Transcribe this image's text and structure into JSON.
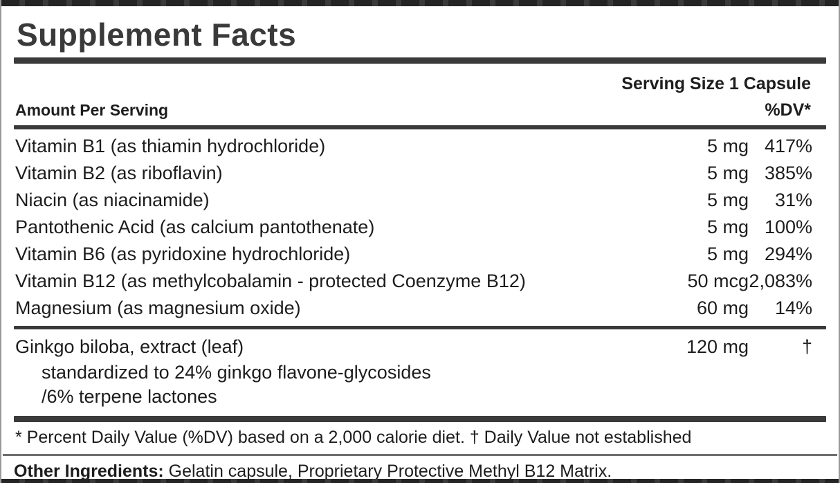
{
  "label": {
    "title": "Supplement Facts",
    "serving_size": "Serving Size 1 Capsule",
    "amount_header": "Amount Per Serving",
    "dv_header": "%DV*",
    "rows": [
      {
        "name": "Vitamin B1 (as thiamin hydrochloride)",
        "amount": "5 mg",
        "dv": "417%"
      },
      {
        "name": "Vitamin B2 (as riboflavin)",
        "amount": "5 mg",
        "dv": "385%"
      },
      {
        "name": "Niacin (as niacinamide)",
        "amount": "5 mg",
        "dv": "31%"
      },
      {
        "name": "Pantothenic Acid (as calcium pantothenate)",
        "amount": "5 mg",
        "dv": "100%"
      },
      {
        "name": "Vitamin B6 (as pyridoxine hydrochloride)",
        "amount": "5 mg",
        "dv": "294%"
      },
      {
        "name": "Vitamin B12 (as methylcobalamin - protected Coenzyme B12)",
        "amount": "50 mcg",
        "dv": "2,083%"
      },
      {
        "name": "Magnesium (as magnesium oxide)",
        "amount": "60 mg",
        "dv": "14%"
      }
    ],
    "botanical": {
      "name": "Ginkgo biloba, extract (leaf)",
      "amount": "120 mg",
      "dv": "†",
      "sub_lines": [
        "standardized to 24% ginkgo flavone-glycosides",
        "/6% terpene lactones"
      ]
    },
    "footnote": "* Percent Daily Value (%DV) based on a 2,000 calorie diet. † Daily Value not established",
    "other_ingredients_label": "Other Ingredients:",
    "other_ingredients_text": " Gelatin capsule, Proprietary Protective Methyl B12 Matrix.",
    "colors": {
      "text": "#1d1d1d",
      "title": "#3a3a3a",
      "divider_bar": "#3a3a3a",
      "outer_border": "#9a9a9a",
      "edge_strip": "#242424",
      "background": "#ffffff"
    }
  }
}
